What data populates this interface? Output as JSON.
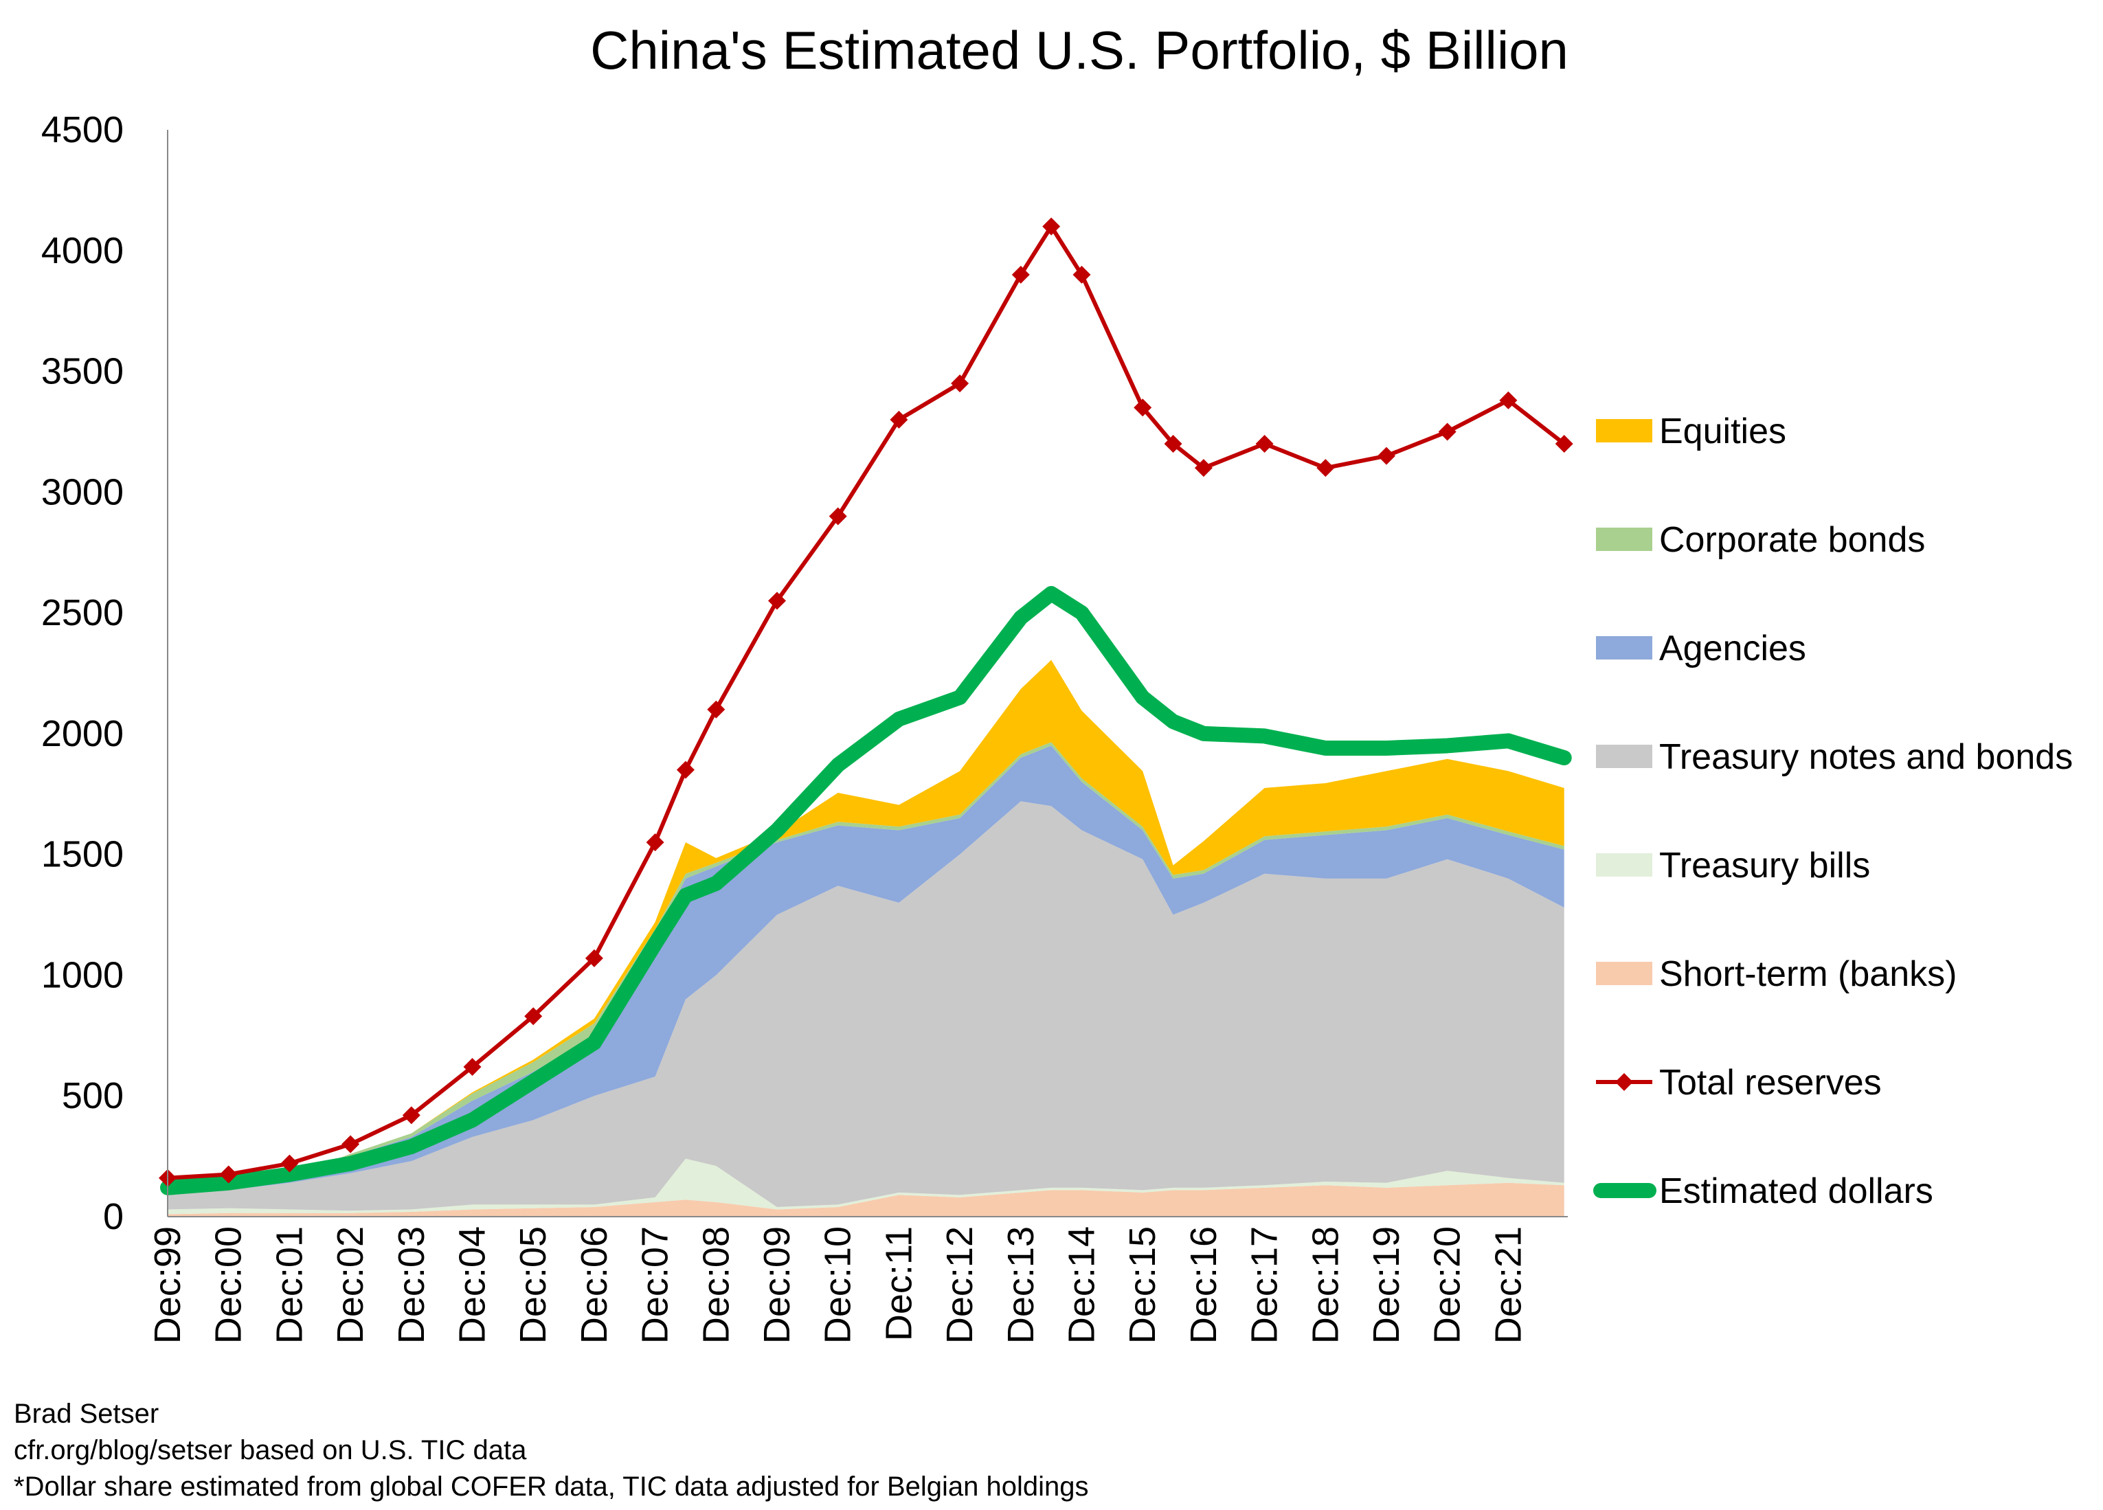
{
  "chart_data": {
    "type": "area",
    "title": "China's Estimated U.S. Portfolio, $ Billion",
    "xlabel": "",
    "ylabel": "",
    "ylim": [
      0,
      4500
    ],
    "yticks": [
      "0",
      "500",
      "1000",
      "1500",
      "2000",
      "2500",
      "3000",
      "3500",
      "4000",
      "4500"
    ],
    "xticks": [
      "Dec:99",
      "Dec:00",
      "Dec:01",
      "Dec:02",
      "Dec:03",
      "Dec:04",
      "Dec:05",
      "Dec:06",
      "Dec:07",
      "Dec:08",
      "Dec:09",
      "Dec:10",
      "Dec:11",
      "Dec:12",
      "Dec:13",
      "Dec:14",
      "Dec:15",
      "Dec:16",
      "Dec:17",
      "Dec:18",
      "Dec:19",
      "Dec:20",
      "Dec:21"
    ],
    "grid": false,
    "legend_position": "right",
    "x": [
      "1999-12",
      "2000-12",
      "2001-12",
      "2002-12",
      "2003-12",
      "2004-12",
      "2005-12",
      "2006-12",
      "2007-12",
      "2008-06",
      "2008-12",
      "2009-12",
      "2010-12",
      "2011-12",
      "2012-12",
      "2013-12",
      "2014-06",
      "2014-12",
      "2015-12",
      "2016-06",
      "2016-12",
      "2017-12",
      "2018-12",
      "2019-12",
      "2020-12",
      "2021-12",
      "2022-11"
    ],
    "stacked_series": [
      {
        "name": "Short-term (banks)",
        "color": "#F8CBAD",
        "values": [
          10,
          15,
          15,
          15,
          20,
          30,
          35,
          40,
          60,
          70,
          60,
          30,
          40,
          90,
          80,
          100,
          110,
          110,
          100,
          110,
          110,
          120,
          130,
          120,
          130,
          140,
          130
        ]
      },
      {
        "name": "Treasury bills",
        "color": "#E2EFDA",
        "values": [
          20,
          20,
          15,
          10,
          10,
          20,
          15,
          10,
          20,
          170,
          150,
          10,
          10,
          10,
          10,
          10,
          10,
          10,
          10,
          10,
          10,
          10,
          15,
          20,
          60,
          20,
          10
        ]
      },
      {
        "name": "Treasury notes and bonds",
        "color": "#C9C9C9",
        "values": [
          70,
          75,
          110,
          155,
          200,
          280,
          350,
          450,
          500,
          660,
          790,
          1210,
          1320,
          1200,
          1410,
          1610,
          1580,
          1480,
          1370,
          1130,
          1180,
          1290,
          1255,
          1260,
          1290,
          1240,
          1140
        ]
      },
      {
        "name": "Agencies",
        "color": "#8EA9DB",
        "values": [
          15,
          20,
          20,
          70,
          100,
          150,
          200,
          250,
          570,
          500,
          450,
          300,
          250,
          300,
          150,
          180,
          250,
          200,
          120,
          150,
          120,
          140,
          180,
          200,
          170,
          180,
          240
        ]
      },
      {
        "name": "Corporate bonds",
        "color": "#A9D08E",
        "values": [
          2,
          3,
          5,
          10,
          15,
          30,
          40,
          50,
          40,
          20,
          15,
          10,
          15,
          15,
          15,
          15,
          15,
          15,
          15,
          15,
          15,
          15,
          15,
          15,
          15,
          15,
          15
        ]
      },
      {
        "name": "Equities",
        "color": "#FFC000",
        "values": [
          0,
          0,
          0,
          0,
          0,
          5,
          10,
          20,
          30,
          130,
          20,
          30,
          120,
          90,
          180,
          270,
          340,
          280,
          230,
          40,
          120,
          200,
          200,
          230,
          230,
          250,
          240
        ]
      }
    ],
    "line_series": [
      {
        "name": "Total reserves",
        "color": "#C00000",
        "marker": "diamond",
        "values": [
          160,
          175,
          220,
          300,
          420,
          620,
          830,
          1070,
          1550,
          1850,
          2100,
          2550,
          2900,
          3300,
          3450,
          3900,
          4100,
          3900,
          3350,
          3200,
          3100,
          3200,
          3100,
          3150,
          3250,
          3380,
          3200
        ]
      },
      {
        "name": "Estimated dollars",
        "color": "#00B050",
        "marker": "none",
        "values": [
          120,
          140,
          175,
          220,
          290,
          400,
          560,
          720,
          1130,
          1330,
          1380,
          1600,
          1870,
          2060,
          2150,
          2480,
          2580,
          2500,
          2150,
          2050,
          2000,
          1990,
          1940,
          1940,
          1950,
          1970,
          1900
        ]
      }
    ],
    "legend_order": [
      "Equities",
      "Corporate bonds",
      "Agencies",
      "Treasury notes and bonds",
      "Treasury bills",
      "Short-term (banks)",
      "Total reserves",
      "Estimated dollars"
    ]
  },
  "footer": {
    "author": "Brad Setser",
    "source": "cfr.org/blog/setser based on U.S. TIC data",
    "note": "*Dollar share estimated from global COFER data, TIC data adjusted for Belgian holdings"
  }
}
